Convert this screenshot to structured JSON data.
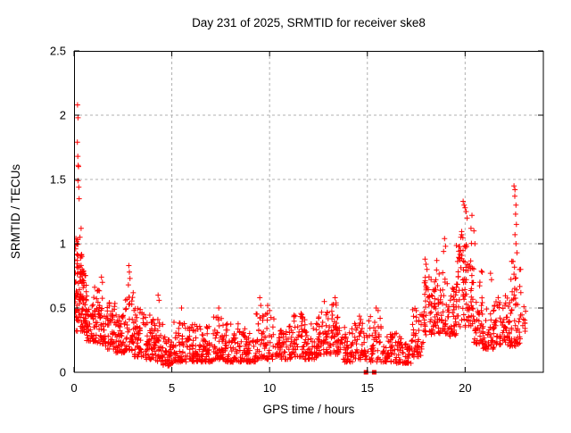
{
  "chart_data": {
    "type": "scatter",
    "title": "Day 231 of 2025, SRMTID for receiver ske8",
    "xlabel": "GPS time / hours",
    "ylabel": "SRMTID / TECUs",
    "xlim": [
      0,
      24
    ],
    "ylim": [
      0,
      2.5
    ],
    "xticks": [
      0,
      5,
      10,
      15,
      20
    ],
    "yticks": [
      0,
      0.5,
      1,
      1.5,
      2,
      2.5
    ],
    "ytick_labels": [
      "0",
      "0.5",
      "1",
      "1.5",
      "2",
      "2.5"
    ],
    "xtick_labels": [
      "0",
      "5",
      "10",
      "15",
      "20"
    ],
    "grid": {
      "visible": true,
      "style": "dashed",
      "color": "#b0b0b0"
    },
    "legend": "none",
    "marker": {
      "shape": "plus",
      "color": "#ff0000",
      "size": 7
    },
    "background": "#ffffff",
    "axis_color": "#000000",
    "scatter_model": {
      "comment": "Dense diurnal scatter: high spread 0-1h (max 2.08), quiet midday band ~0.1-0.4, activity rise after 17.5h, main peak ~1.33 near 20h, secondary spike ~1.45 near 22.5h, data ends ~23.1h",
      "seed": 7,
      "bins": [
        [
          0.02,
          0.28,
          34,
          0.42,
          1.06,
          1.3
        ],
        [
          0.1,
          0.5,
          48,
          0.32,
          0.92,
          1.4
        ],
        [
          0.3,
          0.65,
          40,
          0.28,
          0.78,
          1.5
        ],
        [
          0.6,
          1.05,
          48,
          0.24,
          0.6,
          1.6
        ],
        [
          1.05,
          1.5,
          48,
          0.22,
          0.68,
          1.7
        ],
        [
          1.5,
          2.1,
          55,
          0.18,
          0.56,
          1.7
        ],
        [
          2.1,
          2.6,
          50,
          0.15,
          0.46,
          1.7
        ],
        [
          2.6,
          3.05,
          48,
          0.17,
          0.62,
          1.8
        ],
        [
          3.05,
          3.6,
          52,
          0.12,
          0.5,
          1.8
        ],
        [
          3.6,
          4.1,
          50,
          0.1,
          0.46,
          1.8
        ],
        [
          4.1,
          4.55,
          45,
          0.08,
          0.42,
          1.7
        ],
        [
          4.55,
          5.1,
          50,
          0.05,
          0.28,
          1.5
        ],
        [
          5.1,
          5.7,
          52,
          0.08,
          0.42,
          1.8
        ],
        [
          5.7,
          6.4,
          60,
          0.08,
          0.38,
          1.7
        ],
        [
          6.4,
          7.1,
          58,
          0.08,
          0.36,
          1.7
        ],
        [
          7.1,
          7.7,
          52,
          0.1,
          0.43,
          1.7
        ],
        [
          7.7,
          8.5,
          62,
          0.08,
          0.38,
          1.7
        ],
        [
          8.5,
          9.3,
          60,
          0.08,
          0.34,
          1.7
        ],
        [
          9.3,
          10.3,
          68,
          0.1,
          0.46,
          1.8
        ],
        [
          10.3,
          11.2,
          65,
          0.1,
          0.38,
          1.7
        ],
        [
          11.2,
          11.8,
          48,
          0.12,
          0.46,
          1.7
        ],
        [
          11.8,
          12.5,
          55,
          0.1,
          0.4,
          1.7
        ],
        [
          12.5,
          13.1,
          52,
          0.14,
          0.5,
          1.6
        ],
        [
          13.1,
          13.7,
          52,
          0.14,
          0.53,
          1.6
        ],
        [
          13.7,
          14.3,
          48,
          0.08,
          0.36,
          1.7
        ],
        [
          14.3,
          14.9,
          46,
          0.1,
          0.44,
          1.7
        ],
        [
          14.9,
          15.8,
          52,
          0.08,
          0.46,
          1.8
        ],
        [
          15.8,
          16.5,
          52,
          0.08,
          0.32,
          1.6
        ],
        [
          16.5,
          17.3,
          55,
          0.07,
          0.28,
          1.6
        ],
        [
          17.3,
          17.9,
          48,
          0.12,
          0.5,
          1.5
        ],
        [
          17.9,
          18.45,
          52,
          0.28,
          0.76,
          1.4
        ],
        [
          18.45,
          19.1,
          55,
          0.3,
          0.8,
          1.5
        ],
        [
          19.1,
          19.55,
          42,
          0.28,
          0.66,
          1.5
        ],
        [
          19.55,
          20.35,
          88,
          0.35,
          1.15,
          1.25
        ],
        [
          20.35,
          20.9,
          50,
          0.22,
          0.85,
          1.6
        ],
        [
          20.9,
          21.6,
          55,
          0.18,
          0.58,
          1.6
        ],
        [
          21.6,
          22.3,
          58,
          0.2,
          0.6,
          1.5
        ],
        [
          22.3,
          22.9,
          55,
          0.2,
          0.88,
          1.5
        ],
        [
          22.9,
          23.1,
          10,
          0.3,
          0.56,
          1.4
        ]
      ],
      "outliers": [
        [
          0.18,
          2.08
        ],
        [
          0.2,
          1.98
        ],
        [
          0.17,
          1.79
        ],
        [
          0.19,
          1.68
        ],
        [
          0.21,
          1.61
        ],
        [
          0.23,
          1.6
        ],
        [
          0.2,
          1.49
        ],
        [
          0.24,
          1.44
        ],
        [
          0.26,
          1.35
        ],
        [
          0.36,
          1.12
        ],
        [
          0.3,
          1.05
        ],
        [
          0.14,
          1.0
        ],
        [
          1.4,
          0.74
        ],
        [
          1.45,
          0.7
        ],
        [
          2.8,
          0.83
        ],
        [
          2.83,
          0.78
        ],
        [
          2.86,
          0.73
        ],
        [
          2.78,
          0.68
        ],
        [
          4.3,
          0.6
        ],
        [
          4.35,
          0.56
        ],
        [
          5.5,
          0.5
        ],
        [
          7.4,
          0.5
        ],
        [
          9.5,
          0.58
        ],
        [
          9.55,
          0.52
        ],
        [
          9.9,
          0.52
        ],
        [
          10.0,
          0.48
        ],
        [
          12.8,
          0.55
        ],
        [
          13.35,
          0.58
        ],
        [
          13.4,
          0.54
        ],
        [
          15.45,
          0.5
        ],
        [
          15.55,
          0.48
        ],
        [
          17.95,
          0.88
        ],
        [
          18.0,
          0.84
        ],
        [
          18.05,
          0.8
        ],
        [
          18.55,
          0.87
        ],
        [
          18.9,
          0.94
        ],
        [
          18.95,
          1.04
        ],
        [
          19.0,
          0.98
        ],
        [
          19.9,
          1.33
        ],
        [
          19.95,
          1.3
        ],
        [
          20.0,
          1.28
        ],
        [
          20.05,
          1.25
        ],
        [
          20.1,
          1.2
        ],
        [
          20.35,
          1.22
        ],
        [
          20.3,
          1.12
        ],
        [
          20.45,
          1.1
        ],
        [
          20.5,
          1.0
        ],
        [
          21.3,
          0.77
        ],
        [
          21.35,
          0.72
        ],
        [
          22.5,
          1.45
        ],
        [
          22.55,
          1.42
        ],
        [
          22.54,
          1.37
        ],
        [
          22.6,
          1.3
        ],
        [
          22.58,
          1.23
        ],
        [
          22.62,
          1.15
        ],
        [
          22.55,
          1.07
        ],
        [
          22.6,
          1.0
        ],
        [
          22.65,
          0.93
        ]
      ],
      "zero_squares": [
        14.93,
        15.35
      ]
    }
  }
}
